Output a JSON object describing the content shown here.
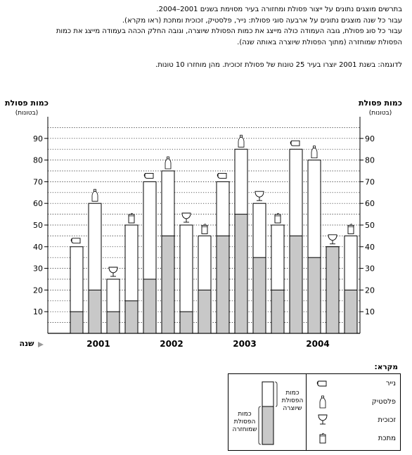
{
  "intro": {
    "line1": "בתרשים מוצגים נתונים על ייצור פסולת ומחזורה בעיר מסוימת בשנים 2001–2004.",
    "line2": "עבור כל שנה מוצגים נתונים על ארבעה סוגי פסולת: נייר, פלסטיק, זכוכית ומתכת (ראו מקרא).",
    "line3": "עבור כל סוג פסולת, גובה העמודה כולה מייצג את כמות הפסולת שיוצרה, וגובה החלק הכהה בעמודה מייצג את כמות",
    "line4": "הפסולת שמוחזרה (מתוך הפסולת שיוצרה באותה שנה).",
    "example": "לדוגמה: בשנת 2001 יוצרו בעיר 25 טונות של פסולת זכוכית.  מהן מוחזרו 10 טונות."
  },
  "axis": {
    "label_left": "כמות פסולת",
    "unit_left": "(בטונות)",
    "label_right": "כמות פסולת",
    "unit_right": "(בטונות)",
    "x_label": "שנה"
  },
  "legend": {
    "title": "מקרא:",
    "items": [
      {
        "label": "נייר",
        "icon": "paper-icon"
      },
      {
        "label": "פלסטיק",
        "icon": "plastic-bottle-icon"
      },
      {
        "label": "זכוכית",
        "icon": "wine-glass-icon"
      },
      {
        "label": "מתכת",
        "icon": "can-icon"
      }
    ],
    "produced_note": [
      "כמות",
      "הפסולת",
      "שיוצרה"
    ],
    "recycled_note": [
      "כמות",
      "הפסולת",
      "שמוחזרה"
    ]
  },
  "colors": {
    "recycled_fill": "#c8c8c8",
    "produced_fill": "#ffffff",
    "grid": "#000000"
  },
  "chart_data": {
    "type": "bar",
    "categories": [
      "2001",
      "2002",
      "2003",
      "2004"
    ],
    "bar_order": [
      "paper",
      "plastic",
      "glass",
      "metal"
    ],
    "ylim": [
      0,
      90
    ],
    "yticks": [
      10,
      20,
      30,
      40,
      50,
      60,
      70,
      80,
      90
    ],
    "series": [
      {
        "name": "נייר",
        "key": "paper",
        "produced": [
          40,
          70,
          70,
          85
        ],
        "recycled": [
          10,
          25,
          45,
          45
        ]
      },
      {
        "name": "פלסטיק",
        "key": "plastic",
        "produced": [
          60,
          75,
          85,
          80
        ],
        "recycled": [
          20,
          45,
          55,
          35
        ]
      },
      {
        "name": "זכוכית",
        "key": "glass",
        "produced": [
          25,
          50,
          60,
          40
        ],
        "recycled": [
          10,
          10,
          35,
          40
        ]
      },
      {
        "name": "מתכת",
        "key": "metal",
        "produced": [
          50,
          45,
          50,
          45
        ],
        "recycled": [
          15,
          20,
          20,
          20
        ]
      }
    ],
    "grid": true
  }
}
